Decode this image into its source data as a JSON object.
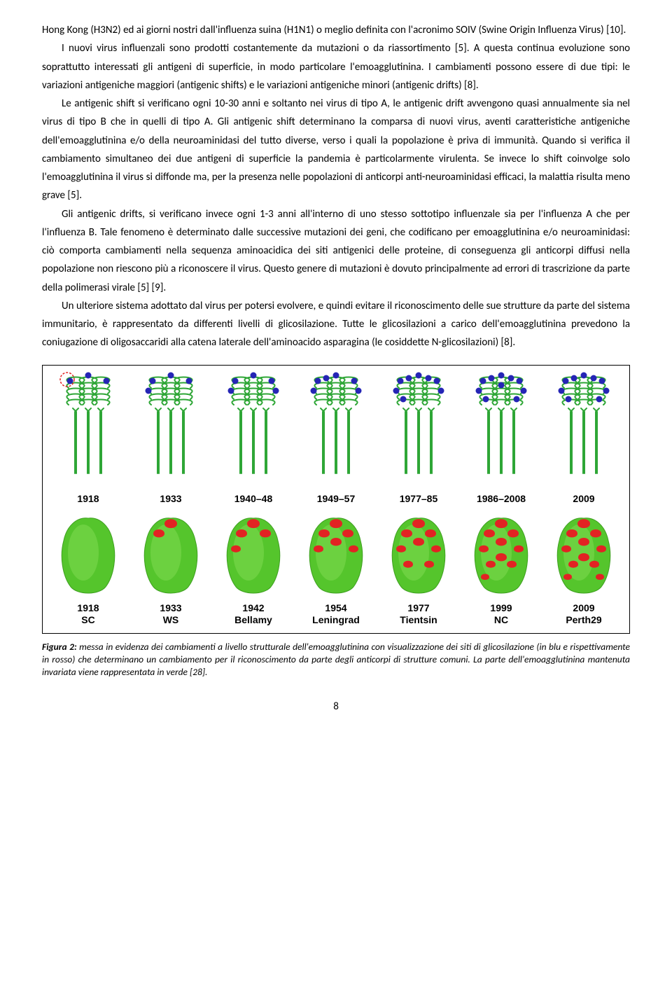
{
  "paragraphs": {
    "p0": "Hong Kong (H3N2) ed ai giorni nostri dall'influenza suina (H1N1) o meglio definita con l'acronimo SOIV (Swine Origin Influenza Virus) [10].",
    "p1": "I nuovi virus influenzali sono prodotti costantemente da mutazioni o da riassortimento [5]. A questa continua evoluzione sono soprattutto interessati gli antigeni di superficie, in modo particolare l'emoagglutinina. I cambiamenti possono essere di due tipi: le variazioni antigeniche maggiori (antigenic shifts) e le variazioni antigeniche minori (antigenic drifts) [8].",
    "p2": "Le antigenic shift si verificano ogni 10-30 anni e soltanto nei virus di tipo A, le antigenic drift avvengono quasi annualmente sia nel virus di tipo B che in quelli di tipo A. Gli antigenic shift determinano la comparsa di nuovi virus, aventi caratteristiche antigeniche dell'emoagglutinina e/o della neuroaminidasi del tutto diverse, verso i quali la popolazione è priva di immunità. Quando si verifica il cambiamento simultaneo dei due antigeni di superficie la pandemia è particolarmente virulenta. Se invece lo shift coinvolge solo l'emoagglutinina il virus si diffonde ma, per la presenza nelle popolazioni di anticorpi anti-neuroaminidasi efficaci, la malattia risulta meno grave [5].",
    "p3": "Gli antigenic drifts, si verificano invece ogni 1-3 anni all'interno di uno stesso sottotipo influenzale sia per l'influenza A che per l'influenza B. Tale fenomeno è determinato dalle successive mutazioni dei geni, che codificano per emoagglutinina e/o neuroaminidasi: ciò comporta cambiamenti nella sequenza aminoacidica dei siti antigenici delle proteine, di conseguenza gli anticorpi diffusi nella popolazione non riescono più a riconoscere il virus. Questo genere di mutazioni è dovuto principalmente ad errori di trascrizione da parte della polimerasi virale [5] [9].",
    "p4": "Un ulteriore sistema adottato dal virus per potersi evolvere, e quindi evitare il riconoscimento delle sue strutture da parte del sistema immunitario, è rappresentato da differenti livelli di glicosilazione. Tutte le glicosilazioni a carico dell'emoagglutinina prevedono la coniugazione di oligosaccaridi alla catena laterale dell'aminoacido asparagina (le cosiddette N-glicosilazioni) [8]."
  },
  "figure": {
    "ribbon_color": "#2ea636",
    "ribbon_dot_color": "#2525b5",
    "blob_color": "#55c52c",
    "blob_spot_color": "#e22323",
    "highlight_ring_color": "#e22323",
    "row1_labels": [
      "1918",
      "1933",
      "1940–48",
      "1949–57",
      "1977–85",
      "1986–2008",
      "2009"
    ],
    "row2_labels": [
      "1918\nSC",
      "1933\nWS",
      "1942\nBellamy",
      "1954\nLeningrad",
      "1977\nTientsin",
      "1999\nNC",
      "2009\nPerth29"
    ],
    "ribbon_dot_counts": [
      3,
      4,
      5,
      6,
      8,
      10,
      9
    ],
    "blob_spot_counts": [
      0,
      2,
      4,
      6,
      8,
      10,
      11
    ]
  },
  "caption": {
    "lead": "Figura 2:",
    "text": " messa in evidenza dei cambiamenti a livello strutturale dell'emoagglutinina con visualizzazione dei siti di glicosilazione (in blu e rispettivamente in rosso) che determinano un cambiamento per il riconoscimento da parte degli anticorpi di strutture comuni. La parte dell'emoagglutinina mantenuta invariata viene rappresentata in verde [28]."
  },
  "page_number": "8"
}
